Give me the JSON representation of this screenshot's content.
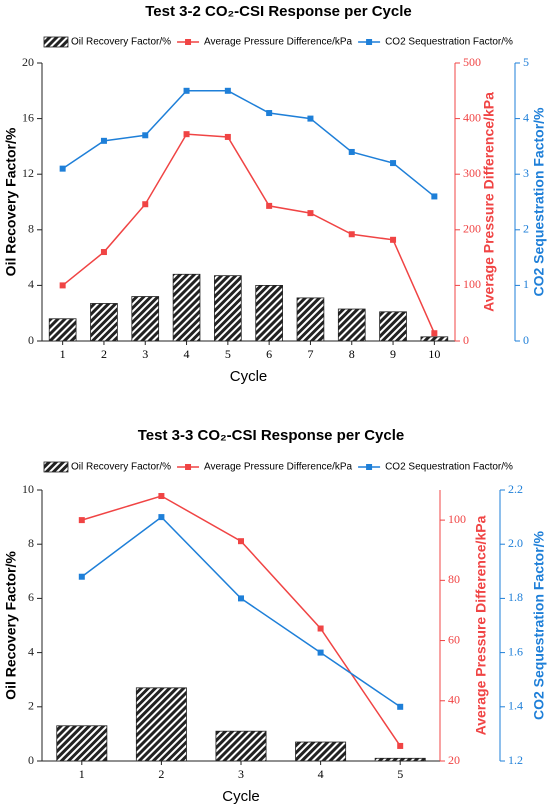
{
  "chart_data": [
    {
      "type": "combo",
      "title": "Test 3-2 CO₂-CSI Response per Cycle",
      "xlabel": "Cycle",
      "ylabel": "Oil Recovery Factor/%",
      "y2label": "Average Pressure Difference/kPa",
      "y3label": "CO2 Sequestration Factor/%",
      "categories": [
        "1",
        "2",
        "3",
        "4",
        "5",
        "6",
        "7",
        "8",
        "9",
        "10"
      ],
      "ylim": [
        0,
        20
      ],
      "yticks": [
        0,
        4,
        8,
        12,
        16,
        20
      ],
      "y2lim": [
        0,
        500
      ],
      "y2ticks": [
        0,
        100,
        200,
        300,
        400,
        500
      ],
      "y3lim": [
        0,
        5
      ],
      "y3ticks": [
        0,
        1,
        2,
        3,
        4,
        5
      ],
      "series": [
        {
          "name": "Oil Recovery Factor/%",
          "color": "#222222",
          "kind": "bar",
          "values": [
            1.6,
            2.7,
            3.2,
            4.8,
            4.7,
            4.0,
            3.1,
            2.3,
            2.1,
            0.3
          ]
        },
        {
          "name": "Average Pressure Difference/kPa",
          "color": "#f04444",
          "kind": "line",
          "axis": "y2",
          "values": [
            100,
            160,
            246,
            372,
            367,
            243,
            230,
            192,
            182,
            14
          ]
        },
        {
          "name": "CO2 Sequestration Factor/%",
          "color": "#1e7fd8",
          "kind": "line",
          "axis": "y3",
          "values": [
            3.1,
            3.6,
            3.7,
            4.5,
            4.5,
            4.1,
            4.0,
            3.4,
            3.2,
            2.6
          ]
        }
      ]
    },
    {
      "type": "combo",
      "title": "Test 3-3 CO₂-CSI Response per Cycle",
      "xlabel": "Cycle",
      "ylabel": "Oil Recovery Factor/%",
      "y2label": "Average Pressure Difference/kPa",
      "y3label": "CO2 Sequestration Factor/%",
      "categories": [
        "1",
        "2",
        "3",
        "4",
        "5"
      ],
      "ylim": [
        0,
        10
      ],
      "yticks": [
        0,
        2,
        4,
        6,
        8,
        10
      ],
      "y2lim": [
        20,
        110
      ],
      "y2ticks": [
        20,
        40,
        60,
        80,
        100
      ],
      "y3lim": [
        1.2,
        2.2
      ],
      "y3ticks": [
        1.2,
        1.4,
        1.6,
        1.8,
        {
          "value": 2,
          "label": "2.0"
        },
        2.2
      ],
      "series": [
        {
          "name": "Oil Recovery Factor/%",
          "color": "#222222",
          "kind": "bar",
          "values": [
            1.3,
            2.7,
            1.1,
            0.7,
            0.1
          ]
        },
        {
          "name": "Average Pressure Difference/kPa",
          "color": "#f04444",
          "kind": "line",
          "axis": "y2",
          "values": [
            100,
            108,
            93,
            64,
            25
          ]
        },
        {
          "name": "CO2 Sequestration Factor/%",
          "color": "#1e7fd8",
          "kind": "line",
          "axis": "y3",
          "values": [
            1.88,
            2.1,
            1.8,
            1.6,
            1.4
          ]
        }
      ]
    }
  ]
}
